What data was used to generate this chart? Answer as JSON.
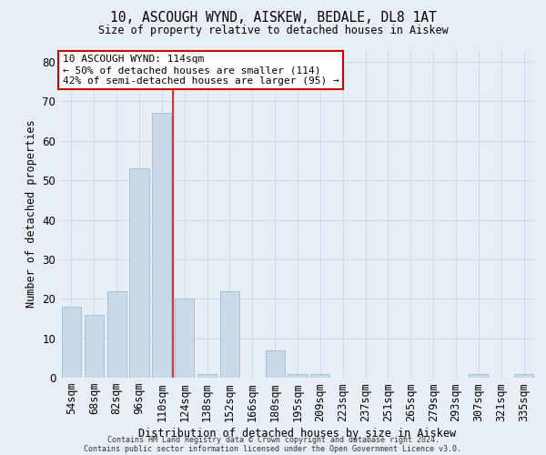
{
  "title1": "10, ASCOUGH WYND, AISKEW, BEDALE, DL8 1AT",
  "title2": "Size of property relative to detached houses in Aiskew",
  "xlabel": "Distribution of detached houses by size in Aiskew",
  "ylabel": "Number of detached properties",
  "categories": [
    "54sqm",
    "68sqm",
    "82sqm",
    "96sqm",
    "110sqm",
    "124sqm",
    "138sqm",
    "152sqm",
    "166sqm",
    "180sqm",
    "195sqm",
    "209sqm",
    "223sqm",
    "237sqm",
    "251sqm",
    "265sqm",
    "279sqm",
    "293sqm",
    "307sqm",
    "321sqm",
    "335sqm"
  ],
  "values": [
    18,
    16,
    22,
    53,
    67,
    20,
    1,
    22,
    0,
    7,
    1,
    1,
    0,
    0,
    0,
    0,
    0,
    0,
    1,
    0,
    1
  ],
  "bar_color": "#c9d9e8",
  "bar_edgecolor": "#a8c4d8",
  "grid_color": "#d0dcea",
  "background_color": "#e8eef6",
  "red_line_x": 4.5,
  "annotation_text": "10 ASCOUGH WYND: 114sqm\n← 50% of detached houses are smaller (114)\n42% of semi-detached houses are larger (95) →",
  "annotation_box_color": "#ffffff",
  "annotation_box_edgecolor": "#cc0000",
  "footer1": "Contains HM Land Registry data © Crown copyright and database right 2024.",
  "footer2": "Contains public sector information licensed under the Open Government Licence v3.0.",
  "ylim": [
    0,
    83
  ],
  "yticks": [
    0,
    10,
    20,
    30,
    40,
    50,
    60,
    70,
    80
  ]
}
